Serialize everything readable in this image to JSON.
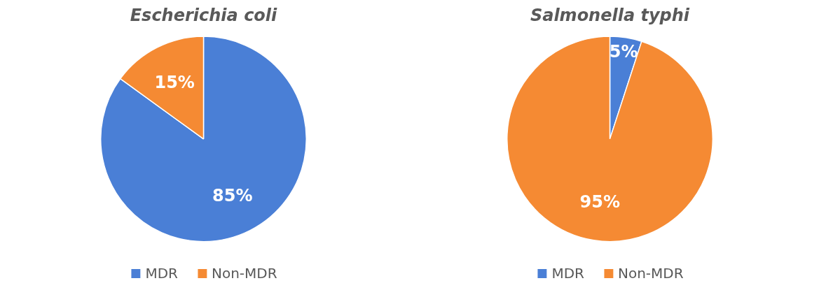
{
  "chart_data": [
    {
      "type": "pie",
      "title": "Escherichia coli",
      "categories": [
        "MDR",
        "Non-MDR"
      ],
      "values": [
        85,
        15
      ],
      "colors": [
        "#4a7fd6",
        "#f58a33"
      ],
      "value_labels": [
        "85%",
        "15%"
      ],
      "legend": "bottom"
    },
    {
      "type": "pie",
      "title": "Salmonella typhi",
      "categories": [
        "MDR",
        "Non-MDR"
      ],
      "values": [
        5,
        95
      ],
      "colors": [
        "#4a7fd6",
        "#f58a33"
      ],
      "value_labels": [
        "5%",
        "95%"
      ],
      "legend": "bottom"
    }
  ]
}
